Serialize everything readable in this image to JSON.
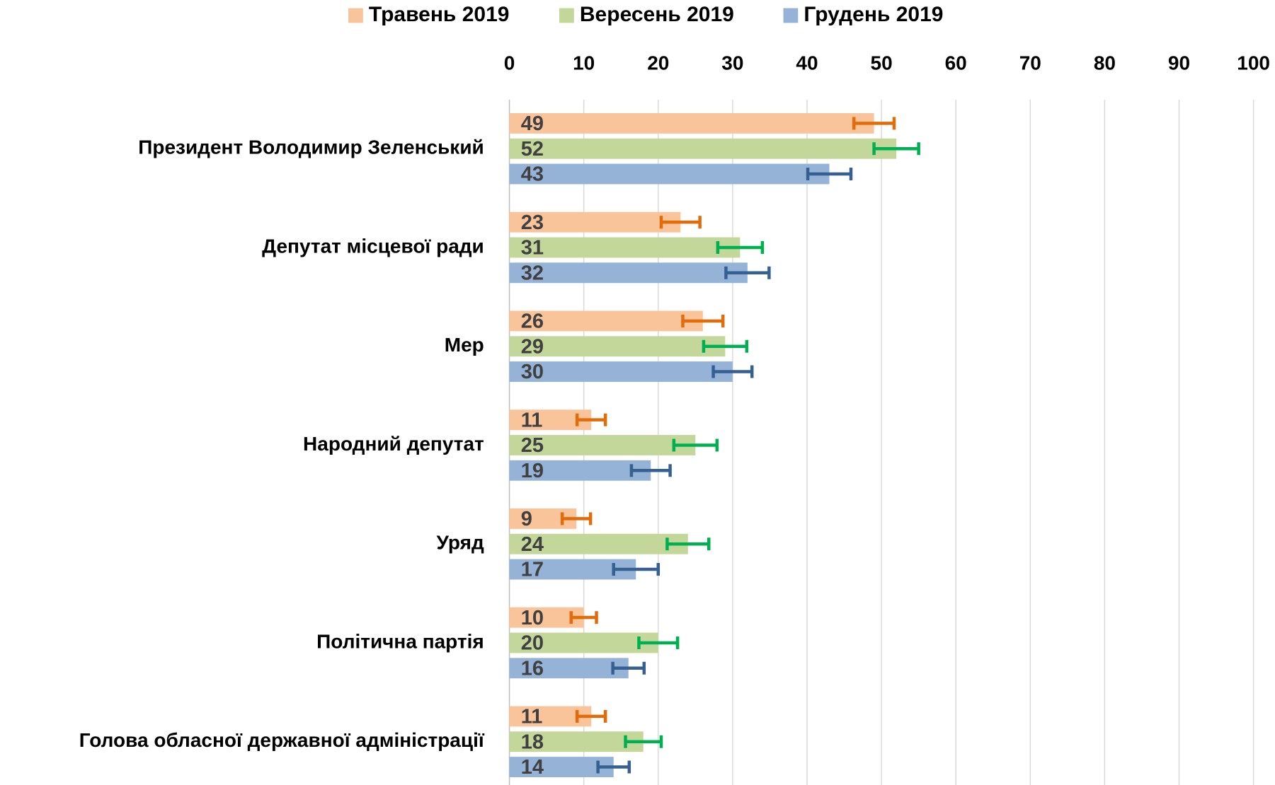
{
  "chart_data": {
    "type": "bar",
    "orientation": "horizontal",
    "categories": [
      "Президент Володимир Зеленський",
      "Депутат місцевої ради",
      "Мер",
      "Народний депутат",
      "Уряд",
      "Політична партія",
      "Голова обласної державної адміністрації"
    ],
    "series": [
      {
        "name": "Травень 2019",
        "color": "#f9c49a",
        "error_color": "#e36c0a",
        "values": [
          49,
          23,
          26,
          11,
          9,
          10,
          11
        ],
        "errors": [
          2.7,
          2.6,
          2.7,
          1.9,
          1.9,
          1.7,
          1.9
        ]
      },
      {
        "name": "Вересень 2019",
        "color": "#c4d79b",
        "error_color": "#00b050",
        "values": [
          52,
          31,
          29,
          25,
          24,
          20,
          18
        ],
        "errors": [
          3,
          3,
          2.9,
          2.9,
          2.8,
          2.6,
          2.4
        ]
      },
      {
        "name": "Грудень 2019",
        "color": "#95b3d7",
        "error_color": "#366092",
        "values": [
          43,
          32,
          30,
          19,
          17,
          16,
          14
        ],
        "errors": [
          2.9,
          2.9,
          2.6,
          2.6,
          3,
          2.1,
          2.1
        ]
      }
    ],
    "xlim": [
      0,
      100
    ],
    "xticks": [
      0,
      10,
      20,
      30,
      40,
      50,
      60,
      70,
      80,
      90,
      100
    ],
    "grid": true,
    "legend": "top"
  }
}
